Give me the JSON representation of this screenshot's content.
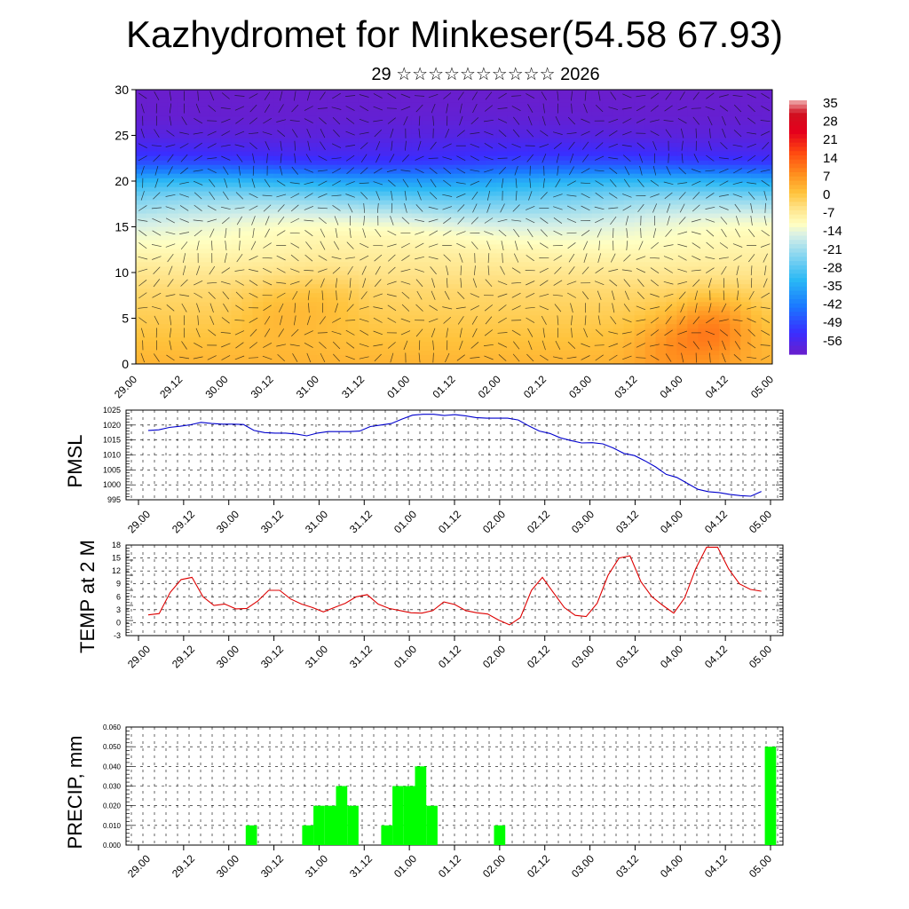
{
  "page": {
    "title": "Kazhydromet for Minkeser(54.58 67.93)",
    "subtitle": "29 ☆☆☆☆☆☆☆☆☆☆ 2026"
  },
  "time_axis": {
    "labels": [
      "29.00",
      "29.12",
      "30.00",
      "30.12",
      "31.00",
      "31.12",
      "01.00",
      "01.12",
      "02.00",
      "02.12",
      "03.00",
      "03.12",
      "04.00",
      "04.12",
      "05.00"
    ]
  },
  "chart_data": [
    {
      "type": "heatmap",
      "panel": "cross-section",
      "ylim": [
        0,
        30
      ],
      "yticks": [
        0,
        5,
        10,
        15,
        20,
        25,
        30
      ],
      "colorbar": {
        "labels": [
          "35",
          "28",
          "21",
          "14",
          "7",
          "0",
          "-7",
          "-14",
          "-21",
          "-28",
          "-35",
          "-42",
          "-49",
          "-56"
        ],
        "stops": [
          {
            "v": -60,
            "color": "#6a1ecc"
          },
          {
            "v": -52,
            "color": "#3a2dff"
          },
          {
            "v": -42,
            "color": "#1a78ff"
          },
          {
            "v": -32,
            "color": "#2ab8f5"
          },
          {
            "v": -22,
            "color": "#8fd8f0"
          },
          {
            "v": -15,
            "color": "#d8f0e6"
          },
          {
            "v": -11,
            "color": "#ffffc2"
          },
          {
            "v": -5,
            "color": "#ffe48a"
          },
          {
            "v": 1,
            "color": "#ffc33c"
          },
          {
            "v": 8,
            "color": "#ff8f1e"
          },
          {
            "v": 16,
            "color": "#ff4a10"
          },
          {
            "v": 24,
            "color": "#e5001c"
          },
          {
            "v": 31,
            "color": "#d01020"
          },
          {
            "v": 36,
            "color": "#f0b0b0"
          }
        ]
      },
      "profile": {
        "z": [
          0,
          4,
          8,
          12,
          14,
          15,
          16,
          18,
          20,
          21,
          22,
          23,
          25,
          27,
          30
        ],
        "v": [
          3,
          0,
          -3,
          -8,
          -11,
          -13,
          -16,
          -24,
          -34,
          -42,
          -49,
          -53,
          -57,
          -59,
          -60
        ]
      },
      "warm_spots": [
        {
          "t": 0.22,
          "z": 6,
          "amp": 3
        },
        {
          "t": 0.3,
          "z": 7,
          "amp": 3
        },
        {
          "t": 0.91,
          "z": 4,
          "amp": 9
        },
        {
          "t": 0.84,
          "z": 2,
          "amp": 5
        }
      ]
    },
    {
      "type": "line",
      "ylabel": "PMSL",
      "ylim": [
        995,
        1025
      ],
      "yticks": [
        995,
        1000,
        1005,
        1010,
        1015,
        1020,
        1025
      ],
      "color": "#0000cc",
      "values": [
        1018.2,
        1018.4,
        1019.2,
        1019.6,
        1020.1,
        1020.9,
        1020.5,
        1020.3,
        1020.3,
        1020.2,
        1018.2,
        1017.5,
        1017.3,
        1017.3,
        1017.0,
        1016.4,
        1017.3,
        1017.8,
        1017.8,
        1017.8,
        1018.0,
        1019.5,
        1020.0,
        1020.5,
        1022.0,
        1023.3,
        1023.6,
        1023.6,
        1023.2,
        1023.5,
        1023.1,
        1022.5,
        1022.3,
        1022.3,
        1022.3,
        1021.7,
        1019.7,
        1018.0,
        1017.2,
        1015.7,
        1014.8,
        1014.0,
        1014.1,
        1013.7,
        1012.3,
        1010.5,
        1009.8,
        1008.0,
        1006.0,
        1003.5,
        1002.5,
        1000.5,
        998.5,
        997.7,
        997.4,
        996.8,
        996.4,
        996.2,
        997.8
      ],
      "x_end_fraction": 0.966
    },
    {
      "type": "line",
      "ylabel": "TEMP at 2 M",
      "ylim": [
        -3,
        18
      ],
      "yticks": [
        -3,
        0,
        3,
        6,
        9,
        12,
        15,
        18
      ],
      "color": "#dd0000",
      "values": [
        1.8,
        2.1,
        7.0,
        10.0,
        10.5,
        6.0,
        4.0,
        4.3,
        3.2,
        3.3,
        5.0,
        7.5,
        7.5,
        5.5,
        4.3,
        3.5,
        2.5,
        3.5,
        4.5,
        6.0,
        6.5,
        4.3,
        3.3,
        2.8,
        2.3,
        2.2,
        2.8,
        4.8,
        4.2,
        2.8,
        2.3,
        2.0,
        0.6,
        -0.5,
        1.2,
        7.5,
        10.5,
        7.0,
        3.5,
        1.7,
        1.4,
        4.5,
        11.0,
        15.0,
        15.5,
        9.5,
        6.0,
        4.0,
        2.2,
        5.8,
        12.5,
        17.5,
        17.5,
        12.5,
        9.0,
        7.7,
        7.3
      ],
      "x_end_fraction": 0.966
    },
    {
      "type": "bar",
      "ylabel": "PRECIP, mm",
      "ylim": [
        0,
        0.06
      ],
      "ytick_labels": [
        "0.000",
        "0.010",
        "0.020",
        "0.030",
        "0.040",
        "0.050",
        "0.060"
      ],
      "color": "#00ff00",
      "bar_width_hours": 3,
      "hours": [
        30,
        45,
        48,
        51,
        54,
        57,
        60,
        66,
        69,
        72,
        75,
        78,
        81,
        96,
        168
      ],
      "values": [
        0.01,
        0.01,
        0.02,
        0.02,
        0.03,
        0.02,
        0.0,
        0.01,
        0.03,
        0.03,
        0.04,
        0.02,
        0.0,
        0.01,
        0.05
      ]
    }
  ]
}
